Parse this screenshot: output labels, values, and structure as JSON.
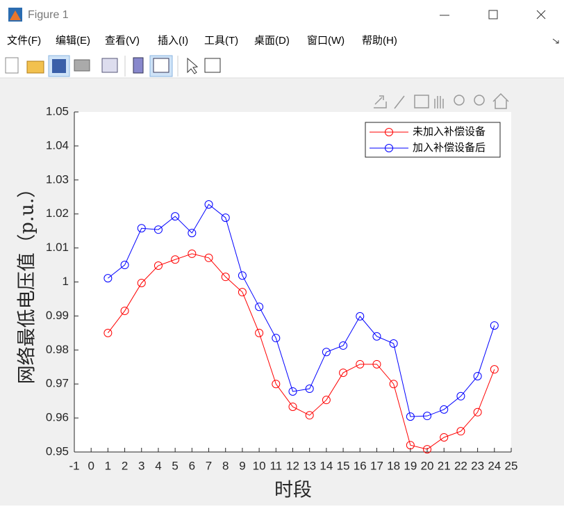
{
  "window": {
    "title": "Figure 1",
    "menu": [
      "文件(F)",
      "编辑(E)",
      "查看(V)",
      "插入(I)",
      "工具(T)",
      "桌面(D)",
      "窗口(W)",
      "帮助(H)"
    ]
  },
  "chart_data": {
    "type": "line",
    "xlabel": "时段",
    "ylabel": "网络最低电压值（p.u.）",
    "x": [
      1,
      2,
      3,
      4,
      5,
      6,
      7,
      8,
      9,
      10,
      11,
      12,
      13,
      14,
      15,
      16,
      17,
      18,
      19,
      20,
      21,
      22,
      23,
      24
    ],
    "series": [
      {
        "name": "未加入补偿设备",
        "color": "#ff0000",
        "marker": "circle",
        "values": [
          0.985,
          0.9915,
          0.9997,
          1.0048,
          1.0066,
          1.0083,
          1.0071,
          1.0015,
          0.997,
          0.985,
          0.97,
          0.9633,
          0.9608,
          0.9653,
          0.9733,
          0.9758,
          0.9758,
          0.97,
          0.952,
          0.9508,
          0.9543,
          0.9561,
          0.9617,
          0.9743
        ]
      },
      {
        "name": "加入补偿设备后",
        "color": "#0000ff",
        "marker": "circle",
        "values": [
          1.0011,
          1.005,
          1.0158,
          1.0154,
          1.0193,
          1.0144,
          1.0228,
          1.0189,
          1.0019,
          0.9927,
          0.9835,
          0.9678,
          0.9686,
          0.9794,
          0.9813,
          0.9899,
          0.984,
          0.9819,
          0.9604,
          0.9606,
          0.9625,
          0.9664,
          0.9723,
          0.9872
        ]
      }
    ],
    "xlim": [
      -1,
      25
    ],
    "xticks": [
      -1,
      0,
      1,
      2,
      3,
      4,
      5,
      6,
      7,
      8,
      9,
      10,
      11,
      12,
      13,
      14,
      15,
      16,
      17,
      18,
      19,
      20,
      21,
      22,
      23,
      24,
      25
    ],
    "ylim": [
      0.95,
      1.05
    ],
    "yticks": [
      0.95,
      0.96,
      0.97,
      0.98,
      0.99,
      1,
      1.01,
      1.02,
      1.03,
      1.04,
      1.05
    ],
    "grid": false,
    "legend": "northeast"
  }
}
